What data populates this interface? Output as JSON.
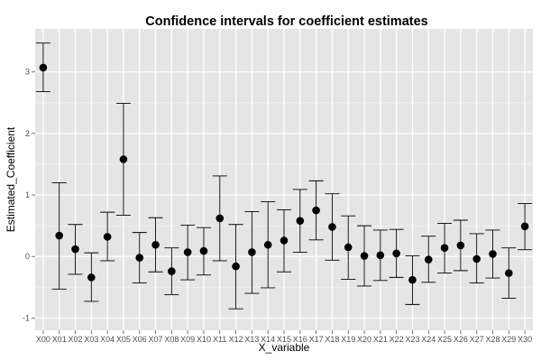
{
  "chart_data": {
    "type": "scatter",
    "title": "Confidence intervals for coefficient estimates",
    "xlabel": "X_variable",
    "ylabel": "Estimated_Coefficient",
    "categories": [
      "X00",
      "X01",
      "X02",
      "X03",
      "X04",
      "X05",
      "X06",
      "X07",
      "X08",
      "X09",
      "X10",
      "X11",
      "X12",
      "X13",
      "X14",
      "X15",
      "X16",
      "X17",
      "X18",
      "X19",
      "X20",
      "X21",
      "X22",
      "X23",
      "X24",
      "X25",
      "X26",
      "X27",
      "X28",
      "X29",
      "X30"
    ],
    "estimate": [
      3.07,
      0.34,
      0.12,
      -0.34,
      0.32,
      1.58,
      -0.02,
      0.19,
      -0.24,
      0.07,
      0.09,
      0.62,
      -0.16,
      0.07,
      0.19,
      0.26,
      0.58,
      0.75,
      0.48,
      0.15,
      0.01,
      0.02,
      0.05,
      -0.38,
      -0.05,
      0.14,
      0.18,
      -0.04,
      0.04,
      -0.27,
      0.49
    ],
    "lower": [
      2.68,
      -0.53,
      -0.29,
      -0.73,
      -0.07,
      0.67,
      -0.43,
      -0.25,
      -0.62,
      -0.38,
      -0.3,
      -0.07,
      -0.85,
      -0.6,
      -0.51,
      -0.25,
      0.07,
      0.27,
      -0.06,
      -0.37,
      -0.48,
      -0.39,
      -0.34,
      -0.78,
      -0.42,
      -0.27,
      -0.23,
      -0.43,
      -0.35,
      -0.68,
      0.11
    ],
    "upper": [
      3.47,
      1.2,
      0.52,
      0.06,
      0.72,
      2.49,
      0.39,
      0.63,
      0.14,
      0.51,
      0.47,
      1.31,
      0.52,
      0.73,
      0.89,
      0.76,
      1.09,
      1.23,
      1.02,
      0.66,
      0.5,
      0.43,
      0.44,
      0.01,
      0.33,
      0.54,
      0.59,
      0.37,
      0.43,
      0.14,
      0.86
    ],
    "ylim": [
      -1.2,
      3.7
    ],
    "yticks": [
      -1,
      0,
      1,
      2,
      3
    ],
    "grid": true,
    "colors": {
      "panel": "#e5e5e5",
      "grid_major": "#ffffff",
      "grid_minor": "#f2f2f2",
      "point": "#000000",
      "errorbar": "#000000",
      "tick_label": "#4d4d4d"
    }
  }
}
